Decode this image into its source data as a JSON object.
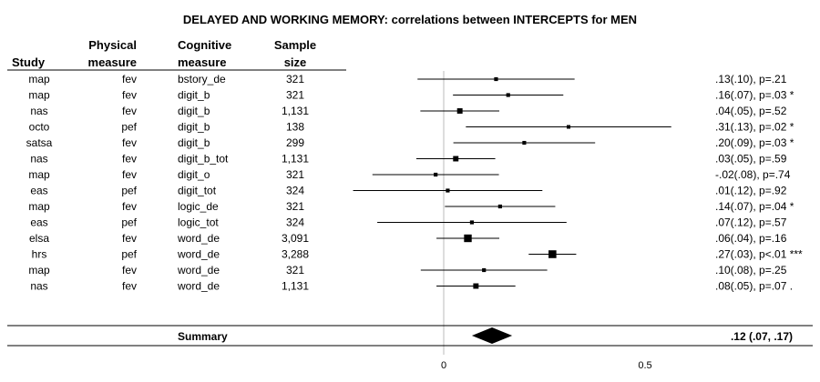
{
  "chart_data": {
    "type": "forest",
    "title": "DELAYED AND WORKING MEMORY: correlations between INTERCEPTS for MEN",
    "columns": {
      "study": "Study",
      "physical": [
        "Physical",
        "measure"
      ],
      "cognitive": [
        "Cognitive",
        "measure"
      ],
      "sample": [
        "Sample",
        "size"
      ]
    },
    "x_ticks": [
      "0",
      "0.5"
    ],
    "x_tick_values": [
      0,
      0.5
    ],
    "rows": [
      {
        "study": "map",
        "physical": "fev",
        "cognitive": "bstory_de",
        "n": "321",
        "estimate": 0.13,
        "lower": -0.065,
        "upper": 0.325,
        "label": ".13(.10), p=.21"
      },
      {
        "study": "map",
        "physical": "fev",
        "cognitive": "digit_b",
        "n": "321",
        "estimate": 0.16,
        "lower": 0.023,
        "upper": 0.297,
        "label": ".16(.07), p=.03 *"
      },
      {
        "study": "nas",
        "physical": "fev",
        "cognitive": "digit_b",
        "n": "1,131",
        "estimate": 0.04,
        "lower": -0.058,
        "upper": 0.138,
        "label": ".04(.05), p=.52"
      },
      {
        "study": "octo",
        "physical": "pef",
        "cognitive": "digit_b",
        "n": "138",
        "estimate": 0.31,
        "lower": 0.055,
        "upper": 0.565,
        "label": ".31(.13), p=.02 *"
      },
      {
        "study": "satsa",
        "physical": "fev",
        "cognitive": "digit_b",
        "n": "299",
        "estimate": 0.2,
        "lower": 0.024,
        "upper": 0.376,
        "label": ".20(.09), p=.03 *"
      },
      {
        "study": "nas",
        "physical": "fev",
        "cognitive": "digit_b_tot",
        "n": "1,131",
        "estimate": 0.03,
        "lower": -0.068,
        "upper": 0.128,
        "label": ".03(.05), p=.59"
      },
      {
        "study": "map",
        "physical": "fev",
        "cognitive": "digit_o",
        "n": "321",
        "estimate": -0.02,
        "lower": -0.177,
        "upper": 0.137,
        "label": "-.02(.08), p=.74"
      },
      {
        "study": "eas",
        "physical": "pef",
        "cognitive": "digit_tot",
        "n": "324",
        "estimate": 0.01,
        "lower": -0.225,
        "upper": 0.245,
        "label": ".01(.12), p=.92"
      },
      {
        "study": "map",
        "physical": "fev",
        "cognitive": "logic_de",
        "n": "321",
        "estimate": 0.14,
        "lower": 0.003,
        "upper": 0.277,
        "label": ".14(.07), p=.04 *"
      },
      {
        "study": "eas",
        "physical": "pef",
        "cognitive": "logic_tot",
        "n": "324",
        "estimate": 0.07,
        "lower": -0.165,
        "upper": 0.305,
        "label": ".07(.12), p=.57"
      },
      {
        "study": "elsa",
        "physical": "fev",
        "cognitive": "word_de",
        "n": "3,091",
        "estimate": 0.06,
        "lower": -0.018,
        "upper": 0.138,
        "label": ".06(.04), p=.16"
      },
      {
        "study": "hrs",
        "physical": "pef",
        "cognitive": "word_de",
        "n": "3,288",
        "estimate": 0.27,
        "lower": 0.211,
        "upper": 0.329,
        "label": ".27(.03), p<.01 ***"
      },
      {
        "study": "map",
        "physical": "fev",
        "cognitive": "word_de",
        "n": "321",
        "estimate": 0.1,
        "lower": -0.057,
        "upper": 0.257,
        "label": ".10(.08), p=.25"
      },
      {
        "study": "nas",
        "physical": "fev",
        "cognitive": "word_de",
        "n": "1,131",
        "estimate": 0.08,
        "lower": -0.018,
        "upper": 0.178,
        "label": ".08(.05), p=.07 ."
      }
    ],
    "summary": {
      "label": "Summary",
      "estimate": 0.12,
      "lower": 0.07,
      "upper": 0.17,
      "text": ".12 (.07, .17)"
    },
    "reference_line": 0,
    "grid": false
  }
}
